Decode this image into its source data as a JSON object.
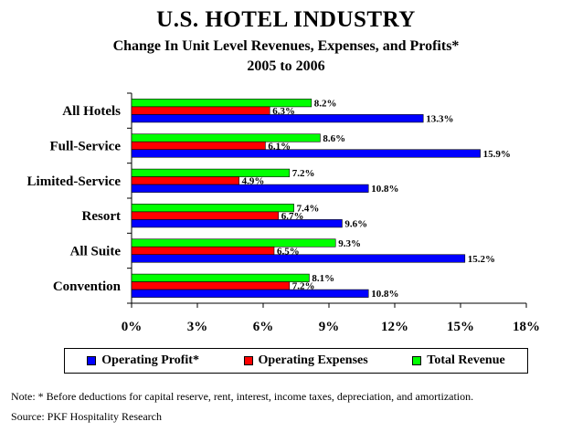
{
  "header": {
    "title": "U.S. HOTEL INDUSTRY",
    "subtitle": "Change In Unit Level Revenues, Expenses, and Profits*",
    "period": "2005 to 2006"
  },
  "footer": {
    "note": "Note: * Before deductions for capital reserve, rent, interest, income taxes, depreciation, and amortization.",
    "source": "Source: PKF Hospitality Research"
  },
  "chart_data": {
    "type": "bar",
    "orientation": "horizontal",
    "categories": [
      "All Hotels",
      "Full-Service",
      "Limited-Service",
      "Resort",
      "All Suite",
      "Convention"
    ],
    "series": [
      {
        "name": "Total Revenue",
        "color": "#00ff00",
        "values": [
          8.2,
          8.6,
          7.2,
          7.4,
          9.3,
          8.1
        ],
        "labels": [
          "8.2%",
          "8.6%",
          "7.2%",
          "7.4%",
          "9.3%",
          "8.1%"
        ]
      },
      {
        "name": "Operating Expenses",
        "color": "#ff0000",
        "values": [
          6.3,
          6.1,
          4.9,
          6.7,
          6.5,
          7.2
        ],
        "labels": [
          "6.3%",
          "6.1%",
          "4.9%",
          "6.7%",
          "6.5%",
          "7.2%"
        ]
      },
      {
        "name": "Operating Profit*",
        "color": "#0000ff",
        "values": [
          13.3,
          15.9,
          10.8,
          9.6,
          15.2,
          10.8
        ],
        "labels": [
          "13.3%",
          "15.9%",
          "10.8%",
          "9.6%",
          "15.2%",
          "10.8%"
        ]
      }
    ],
    "xlim": [
      0,
      18
    ],
    "xticks": [
      0,
      3,
      6,
      9,
      12,
      15,
      18
    ],
    "xtick_labels": [
      "0%",
      "3%",
      "6%",
      "9%",
      "12%",
      "15%",
      "18%"
    ],
    "legend_order": [
      "Operating Profit*",
      "Operating Expenses",
      "Total Revenue"
    ],
    "legend_position": "bottom",
    "grid": false
  }
}
